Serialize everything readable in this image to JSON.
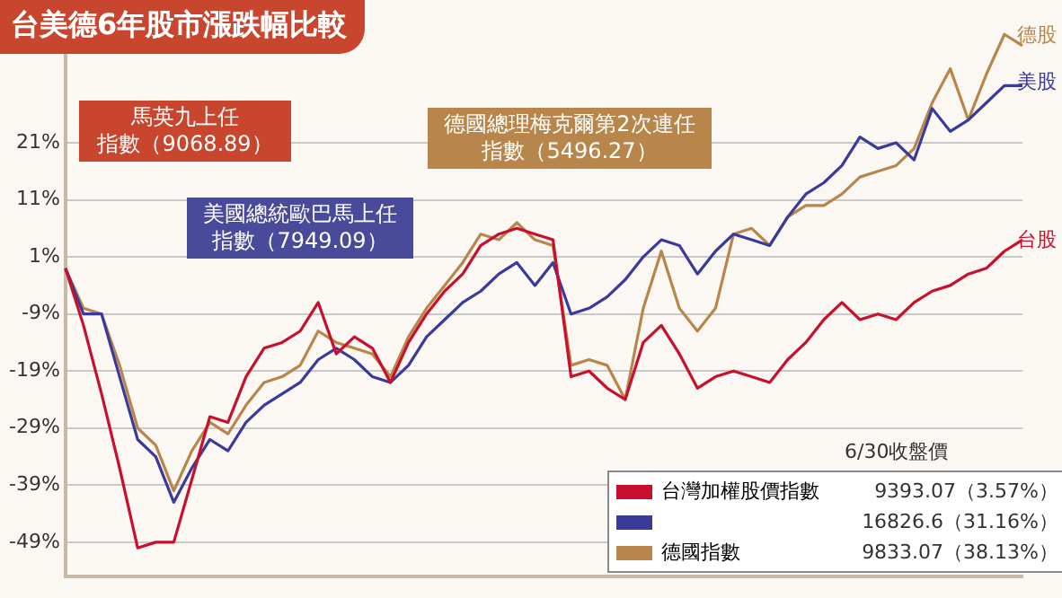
{
  "chart_data": {
    "type": "line",
    "title": "台美德6年股市漲跌幅比較",
    "categories": [
      null,
      null,
      null,
      null,
      null,
      null,
      null,
      null,
      null,
      null,
      null,
      null,
      null,
      null,
      null,
      null,
      null,
      null,
      null,
      null,
      null,
      null,
      null,
      null,
      null,
      null,
      null,
      null,
      null,
      null,
      null,
      null,
      null,
      null,
      null,
      null,
      null,
      null,
      null,
      null,
      null,
      null,
      null,
      null,
      null,
      null,
      null,
      null,
      null,
      null,
      null,
      null,
      null,
      null
    ],
    "series": [
      {
        "name": "台灣加權股價指數",
        "color": "#c8102e",
        "values": [
          -1,
          -11,
          -23,
          -36,
          -50,
          -49,
          -49,
          -38,
          -27,
          -28,
          -20,
          -15,
          -14,
          -12,
          -7,
          -16,
          -13,
          -15,
          -21,
          -14,
          -9,
          -5,
          -2,
          3,
          5,
          6,
          5,
          4,
          -20,
          -19,
          -22,
          -24,
          -14,
          -11,
          -16,
          -22,
          -20,
          -19,
          -20,
          -21,
          -17,
          -14,
          -10,
          -7,
          -10,
          -9,
          -10,
          -7,
          -5,
          -4,
          -2,
          -1,
          2,
          4
        ]
      },
      {
        "color": "#3a3a9a",
        "values": [
          -1,
          -9,
          -9,
          -20,
          -31,
          -34,
          -42,
          -36,
          -31,
          -33,
          -28,
          -25,
          -23,
          -21,
          -17,
          -15,
          -17,
          -20,
          -21,
          -18,
          -13,
          -10,
          -7,
          -5,
          -2,
          0,
          -4,
          0,
          -9,
          -8,
          -6,
          -3,
          1,
          4,
          3,
          -2,
          2,
          5,
          4,
          3,
          8,
          12,
          14,
          17,
          22,
          20,
          21,
          18,
          27,
          23,
          25,
          28,
          31,
          31
        ]
      },
      {
        "name": "德國指數",
        "color": "#b8864a",
        "values": [
          -1,
          -8,
          -9,
          -18,
          -29,
          -32,
          -40,
          -33,
          -28,
          -30,
          -25,
          -21,
          -20,
          -18,
          -12,
          -14,
          -15,
          -16,
          -20,
          -13,
          -8,
          -4,
          0,
          5,
          4,
          7,
          4,
          3,
          -18,
          -17,
          -18,
          -24,
          -8,
          2,
          -8,
          -12,
          -8,
          5,
          6,
          3,
          8,
          10,
          10,
          12,
          15,
          16,
          17,
          20,
          28,
          34,
          25,
          33,
          40,
          38
        ]
      }
    ],
    "ylim": [
      -55,
      43
    ],
    "yticks": [
      {
        "value": -49,
        "label": "-49%"
      },
      {
        "value": -39,
        "label": "-39%"
      },
      {
        "value": -29,
        "label": "-29%"
      },
      {
        "value": -19,
        "label": "-19%"
      },
      {
        "value": -9,
        "label": "-9%"
      },
      {
        "value": 1,
        "label": "1%"
      },
      {
        "value": 11,
        "label": "11%"
      },
      {
        "value": 21,
        "label": "21%"
      }
    ],
    "grid": "y",
    "legend": "bottom right",
    "marker": "none",
    "line_style": "solid",
    "annotations": [
      "9393.07（3.57%）",
      "16826.6（31.16%）",
      "9833.07（38.13%）",
      "6/30收盤價",
      "馬英九上任",
      "指數（9068.89）",
      "美國總統歐巴馬上任",
      "指數（7949.09）",
      "德國總理梅克爾第2次連任",
      "指數（5496.27）",
      "台股",
      "美股",
      "德股"
    ]
  }
}
